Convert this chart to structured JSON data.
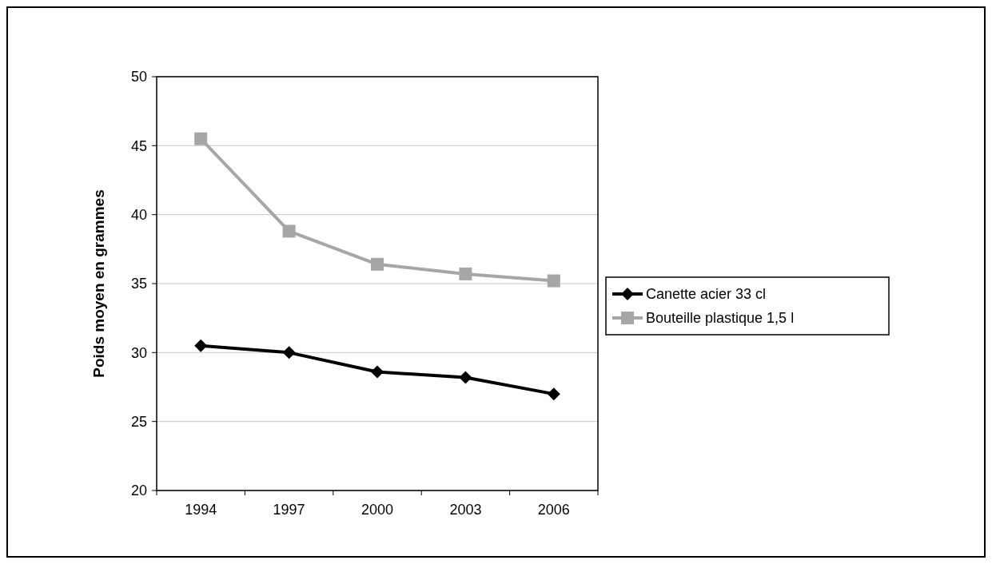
{
  "chart_data": {
    "type": "line",
    "ylabel": "Poids moyen en grammes",
    "categories": [
      "1994",
      "1997",
      "2000",
      "2003",
      "2006"
    ],
    "series": [
      {
        "name": "Canette acier 33 cl",
        "color": "#000000",
        "marker": "diamond",
        "values": [
          30.5,
          30,
          28.6,
          28.2,
          27
        ]
      },
      {
        "name": "Bouteille plastique 1,5 l",
        "color": "#a6a6a6",
        "marker": "square",
        "values": [
          45.5,
          38.8,
          36.4,
          35.7,
          35.2
        ]
      }
    ],
    "ylim": [
      20,
      50
    ],
    "yticks": [
      20,
      25,
      30,
      35,
      40,
      45,
      50
    ],
    "grid": "y",
    "legend": "right",
    "line_style": "solid"
  }
}
